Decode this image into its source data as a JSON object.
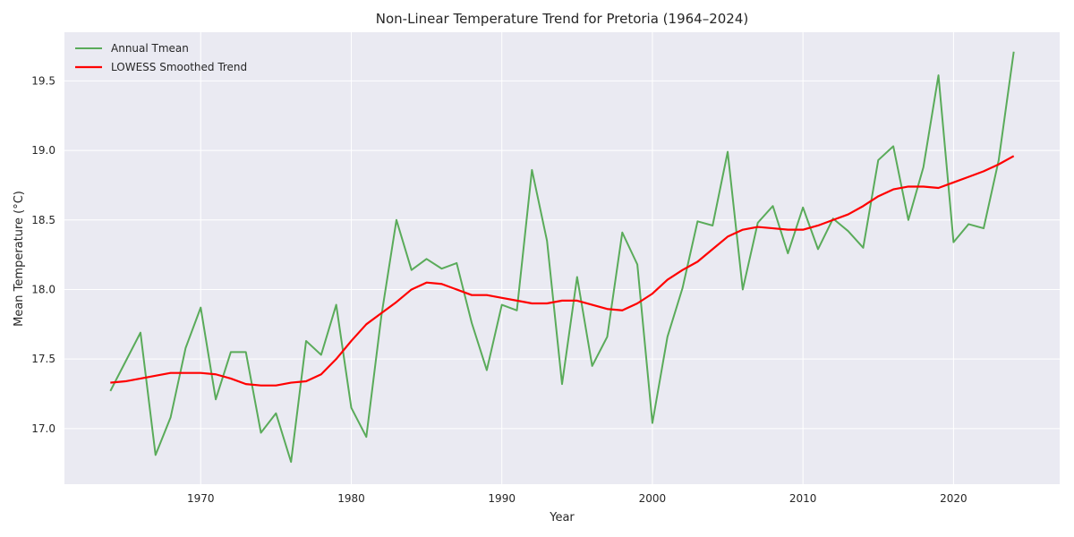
{
  "chart_data": {
    "type": "line",
    "title": "Non-Linear Temperature Trend for Pretoria (1964–2024)",
    "xlabel": "Year",
    "ylabel": "Mean Temperature (°C)",
    "xlim": [
      1960.95,
      1966.05
    ],
    "xlim_note": "",
    "xticks": [
      1970,
      1980,
      1990,
      2000,
      2010,
      2020
    ],
    "yticks": [
      17.0,
      17.5,
      18.0,
      18.5,
      19.0,
      19.5
    ],
    "ylim": [
      16.6,
      19.85
    ],
    "grid": true,
    "legend_position": "top-left",
    "x": [
      1964,
      1965,
      1966,
      1967,
      1968,
      1969,
      1970,
      1971,
      1972,
      1973,
      1974,
      1975,
      1976,
      1977,
      1978,
      1979,
      1980,
      1981,
      1982,
      1983,
      1984,
      1985,
      1986,
      1987,
      1988,
      1989,
      1990,
      1991,
      1992,
      1993,
      1994,
      1995,
      1996,
      1997,
      1998,
      1999,
      2000,
      2001,
      2002,
      2003,
      2004,
      2005,
      2006,
      2007,
      2008,
      2009,
      2010,
      2011,
      2012,
      2013,
      2014,
      2015,
      2016,
      2017,
      2018,
      2019,
      2020,
      2021,
      2022,
      2023,
      2024
    ],
    "series": [
      {
        "name": "Annual Tmean",
        "color": "#5aab5a",
        "values": [
          17.27,
          17.48,
          17.69,
          16.81,
          17.08,
          17.58,
          17.87,
          17.21,
          17.55,
          17.55,
          16.97,
          17.11,
          16.76,
          17.63,
          17.53,
          17.89,
          17.15,
          16.94,
          17.81,
          18.5,
          18.14,
          18.22,
          18.15,
          18.19,
          17.76,
          17.42,
          17.89,
          17.85,
          18.86,
          18.35,
          17.32,
          18.09,
          17.45,
          17.66,
          18.41,
          18.18,
          17.04,
          17.66,
          18.01,
          18.49,
          18.46,
          18.99,
          18.0,
          18.48,
          18.6,
          18.26,
          18.59,
          18.29,
          18.51,
          18.42,
          18.3,
          18.93,
          19.03,
          18.5,
          18.88,
          19.54,
          18.34,
          18.47,
          18.44,
          18.93,
          19.71
        ]
      },
      {
        "name": "LOWESS Smoothed Trend",
        "color": "#ff0000",
        "values": [
          17.33,
          17.34,
          17.36,
          17.38,
          17.4,
          17.4,
          17.4,
          17.39,
          17.36,
          17.32,
          17.31,
          17.31,
          17.33,
          17.34,
          17.39,
          17.5,
          17.63,
          17.75,
          17.83,
          17.91,
          18.0,
          18.05,
          18.04,
          18.0,
          17.96,
          17.96,
          17.94,
          17.92,
          17.9,
          17.9,
          17.92,
          17.92,
          17.89,
          17.86,
          17.85,
          17.9,
          17.97,
          18.07,
          18.14,
          18.2,
          18.29,
          18.38,
          18.43,
          18.45,
          18.44,
          18.43,
          18.43,
          18.46,
          18.5,
          18.54,
          18.6,
          18.67,
          18.72,
          18.74,
          18.74,
          18.73,
          18.77,
          18.81,
          18.85,
          18.9,
          18.96
        ]
      }
    ]
  }
}
